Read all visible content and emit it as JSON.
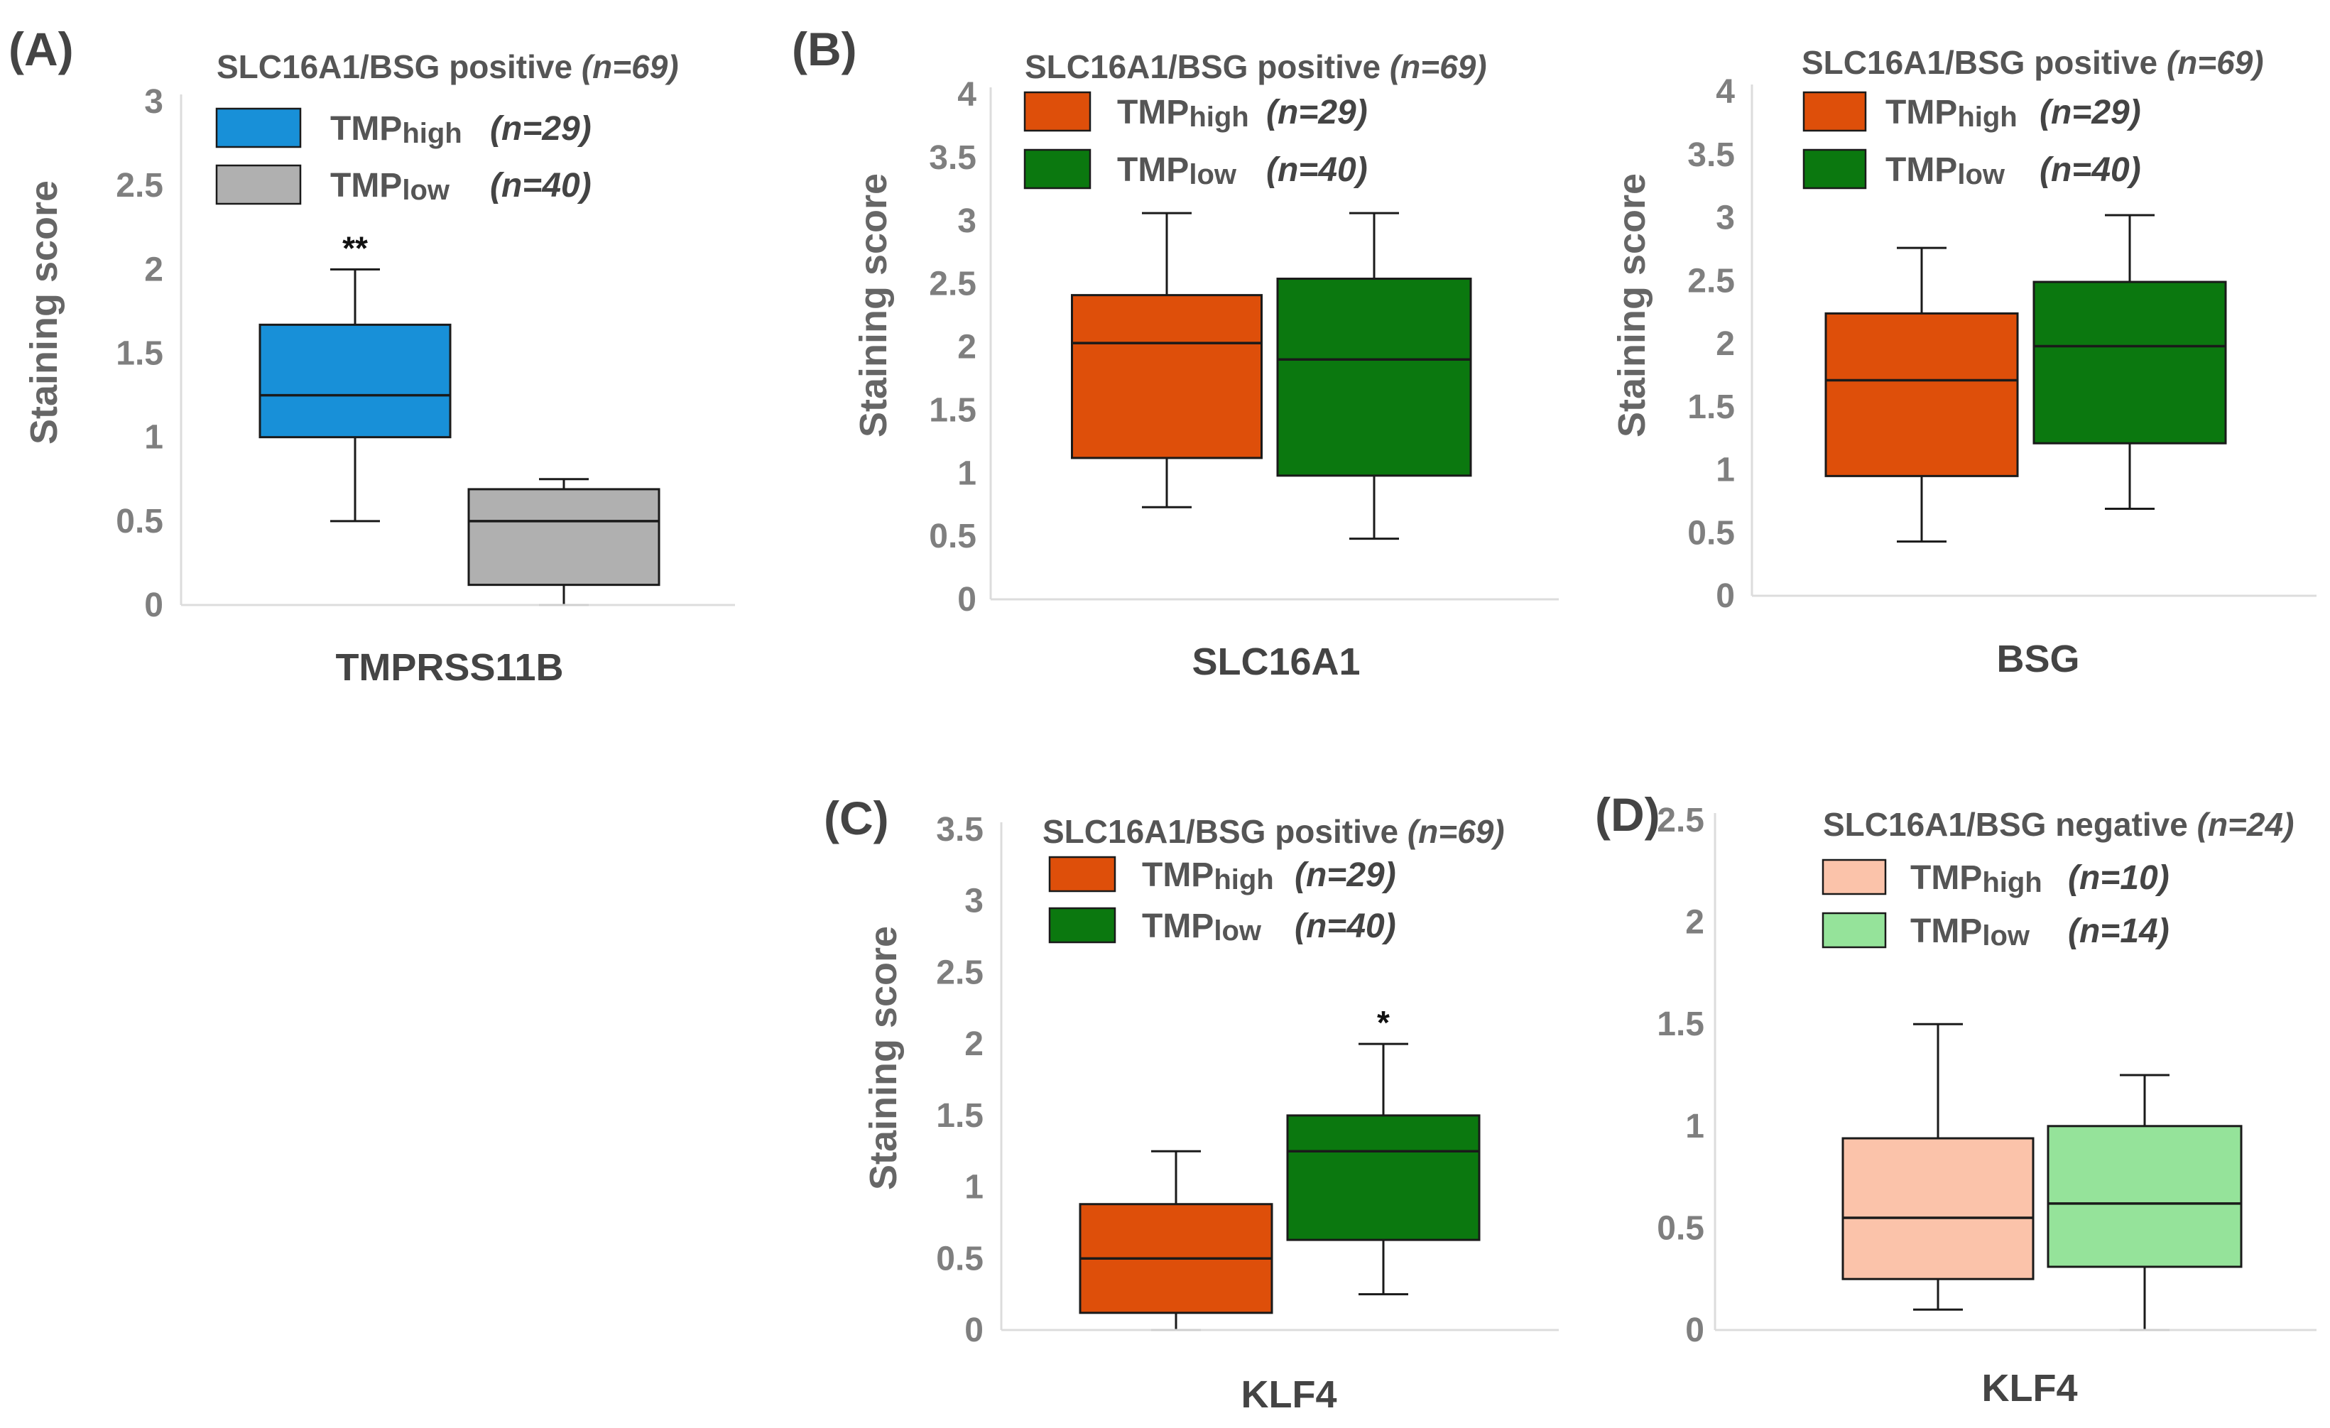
{
  "figure": {
    "panel_labels": [
      "(A)",
      "(B)",
      "(C)",
      "(D)"
    ]
  },
  "colors": {
    "A_high": "#1890d8",
    "A_low": "#b0b0b0",
    "orange": "#de4f0a",
    "green": "#0b780f",
    "light_orange": "#fbc3aa",
    "light_green": "#95e39a",
    "axis": "#dcdcdc",
    "box_edge": "#1a1a1a"
  },
  "chart_data": [
    {
      "panel": "(A)",
      "type": "box",
      "title": "SLC16A1/BSG positive",
      "title_n": "(n=69)",
      "ylabel": "Staining score",
      "xlabel": "TMPRSS11B",
      "ylim": [
        0,
        3
      ],
      "yticks": [
        "0",
        "0.5",
        "1",
        "1.5",
        "2",
        "2.5",
        "3"
      ],
      "legend": [
        {
          "main": "TMP",
          "sub": "high",
          "n": "(n=29)",
          "color": "#1890d8"
        },
        {
          "main": "TMP",
          "sub": "low",
          "n": "(n=40)",
          "color": "#b0b0b0"
        }
      ],
      "series": [
        {
          "name": "TMPhigh",
          "min": 0.5,
          "q1": 1.0,
          "median": 1.25,
          "q3": 1.67,
          "max": 2.0,
          "sig": "**",
          "color": "#1890d8"
        },
        {
          "name": "TMPlow",
          "min": 0.0,
          "q1": 0.12,
          "median": 0.5,
          "q3": 0.69,
          "max": 0.75,
          "sig": "",
          "color": "#b0b0b0"
        }
      ]
    },
    {
      "panel": "(B)",
      "type": "box",
      "title": "SLC16A1/BSG positive",
      "title_n": "(n=69)",
      "ylabel": "Staining score",
      "xlabel": "SLC16A1",
      "ylim": [
        0,
        4
      ],
      "yticks": [
        "0",
        "0.5",
        "1",
        "1.5",
        "2",
        "2.5",
        "3",
        "3.5",
        "4"
      ],
      "legend": [
        {
          "main": "TMP",
          "sub": "high",
          "n": "(n=29)",
          "color": "#de4f0a"
        },
        {
          "main": "TMP",
          "sub": "low",
          "n": "(n=40)",
          "color": "#0b780f"
        }
      ],
      "series": [
        {
          "name": "TMPhigh",
          "min": 0.73,
          "q1": 1.12,
          "median": 2.03,
          "q3": 2.41,
          "max": 3.06,
          "sig": "",
          "color": "#de4f0a"
        },
        {
          "name": "TMPlow",
          "min": 0.48,
          "q1": 0.98,
          "median": 1.9,
          "q3": 2.54,
          "max": 3.06,
          "sig": "",
          "color": "#0b780f"
        }
      ]
    },
    {
      "panel": "",
      "type": "box",
      "title": "SLC16A1/BSG positive",
      "title_n": "(n=69)",
      "ylabel": "Staining score",
      "xlabel": "BSG",
      "ylim": [
        0,
        4
      ],
      "yticks": [
        "0",
        "0.5",
        "1",
        "1.5",
        "2",
        "2.5",
        "3",
        "3.5",
        "4"
      ],
      "legend": [
        {
          "main": "TMP",
          "sub": "high",
          "n": "(n=29)",
          "color": "#de4f0a"
        },
        {
          "main": "TMP",
          "sub": "low",
          "n": "(n=40)",
          "color": "#0b780f"
        }
      ],
      "series": [
        {
          "name": "TMPhigh",
          "min": 0.43,
          "q1": 0.95,
          "median": 1.71,
          "q3": 2.24,
          "max": 2.76,
          "sig": "",
          "color": "#de4f0a"
        },
        {
          "name": "TMPlow",
          "min": 0.69,
          "q1": 1.21,
          "median": 1.98,
          "q3": 2.49,
          "max": 3.02,
          "sig": "",
          "color": "#0b780f"
        }
      ]
    },
    {
      "panel": "(C)",
      "type": "box",
      "title": "SLC16A1/BSG positive",
      "title_n": "(n=69)",
      "ylabel": "Staining score",
      "xlabel": "KLF4",
      "ylim": [
        0,
        3.5
      ],
      "yticks": [
        "0",
        "0.5",
        "1",
        "1.5",
        "2",
        "2.5",
        "3",
        "3.5"
      ],
      "legend": [
        {
          "main": "TMP",
          "sub": "high",
          "n": "(n=29)",
          "color": "#de4f0a"
        },
        {
          "main": "TMP",
          "sub": "low",
          "n": "(n=40)",
          "color": "#0b780f"
        }
      ],
      "series": [
        {
          "name": "TMPhigh",
          "min": 0.0,
          "q1": 0.12,
          "median": 0.5,
          "q3": 0.88,
          "max": 1.25,
          "sig": "",
          "color": "#de4f0a"
        },
        {
          "name": "TMPlow",
          "min": 0.25,
          "q1": 0.63,
          "median": 1.25,
          "q3": 1.5,
          "max": 2.0,
          "sig": "*",
          "color": "#0b780f"
        }
      ]
    },
    {
      "panel": "(D)",
      "type": "box",
      "title": "SLC16A1/BSG negative",
      "title_n": "(n=24)",
      "ylabel": "",
      "xlabel": "KLF4",
      "ylim": [
        0,
        2.5
      ],
      "yticks": [
        "0",
        "0.5",
        "1",
        "1.5",
        "2",
        "2.5"
      ],
      "legend": [
        {
          "main": "TMP",
          "sub": "high",
          "n": "(n=10)",
          "color": "#fbc3aa"
        },
        {
          "main": "TMP",
          "sub": "low",
          "n": "(n=14)",
          "color": "#95e39a"
        }
      ],
      "series": [
        {
          "name": "TMPhigh",
          "min": 0.1,
          "q1": 0.25,
          "median": 0.55,
          "q3": 0.94,
          "max": 1.5,
          "sig": "",
          "color": "#fbc3aa"
        },
        {
          "name": "TMPlow",
          "min": 0.0,
          "q1": 0.31,
          "median": 0.62,
          "q3": 1.0,
          "max": 1.25,
          "sig": "",
          "color": "#95e39a"
        }
      ]
    }
  ]
}
